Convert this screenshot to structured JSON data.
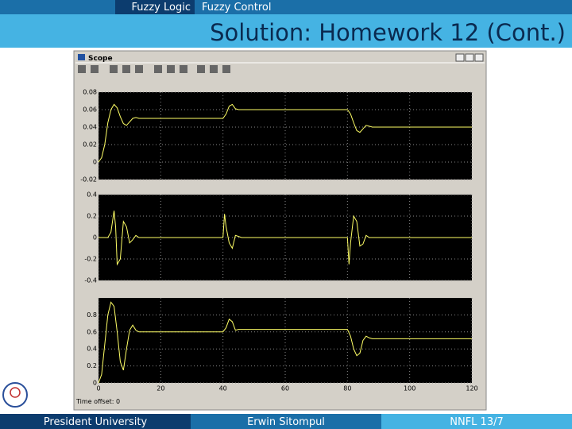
{
  "header": {
    "tabs": [
      "Fuzzy Logic",
      "Fuzzy Control"
    ],
    "title": "Solution: Homework 12 (Cont.)"
  },
  "window": {
    "title": "Scope",
    "time_offset": "Time offset:  0"
  },
  "chart_data": [
    {
      "type": "line",
      "x": [
        0,
        1,
        2,
        3,
        4,
        5,
        6,
        7,
        8,
        9,
        10,
        11,
        12,
        13,
        40,
        41,
        42,
        43,
        44,
        45,
        80,
        81,
        82,
        83,
        84,
        85,
        86,
        87,
        88,
        120
      ],
      "series": [
        {
          "color": "#ffff66",
          "values": [
            0,
            0.005,
            0.02,
            0.045,
            0.06,
            0.066,
            0.062,
            0.052,
            0.044,
            0.042,
            0.046,
            0.05,
            0.051,
            0.05,
            0.05,
            0.055,
            0.064,
            0.066,
            0.061,
            0.06,
            0.06,
            0.055,
            0.045,
            0.036,
            0.034,
            0.038,
            0.042,
            0.041,
            0.04,
            0.04
          ]
        }
      ],
      "xlim": [
        0,
        120
      ],
      "xticks": [
        0,
        20,
        40,
        60,
        80,
        100,
        120
      ],
      "ylim": [
        -0.02,
        0.08
      ],
      "yticks": [
        0.08,
        0.06,
        0.04,
        0.02,
        0,
        -0.02
      ],
      "grid": true
    },
    {
      "type": "line",
      "x": [
        0,
        1,
        3,
        4,
        5,
        5.5,
        6,
        7,
        8,
        9,
        10,
        11,
        12,
        13,
        40,
        40.5,
        41,
        42,
        43,
        44,
        45,
        46,
        47,
        80,
        80.5,
        81,
        82,
        83,
        84,
        85,
        86,
        87,
        88,
        120
      ],
      "series": [
        {
          "color": "#ffff66",
          "values": [
            0,
            0,
            0,
            0.05,
            0.25,
            0.1,
            -0.25,
            -0.2,
            0.15,
            0.1,
            -0.05,
            -0.02,
            0.02,
            0,
            0,
            0.22,
            0.1,
            -0.05,
            -0.1,
            0.02,
            0.01,
            0,
            0,
            0,
            -0.25,
            -0.05,
            0.2,
            0.15,
            -0.08,
            -0.06,
            0.02,
            0,
            0,
            0
          ]
        }
      ],
      "xlim": [
        0,
        120
      ],
      "xticks": [
        0,
        20,
        40,
        60,
        80,
        100,
        120
      ],
      "ylim": [
        -0.4,
        0.4
      ],
      "yticks": [
        0.4,
        0.2,
        0,
        -0.2,
        -0.4
      ],
      "grid": true
    },
    {
      "type": "line",
      "x": [
        0,
        1,
        2,
        3,
        4,
        5,
        6,
        7,
        8,
        9,
        10,
        11,
        12,
        13,
        40,
        41,
        42,
        43,
        44,
        45,
        80,
        81,
        82,
        83,
        84,
        85,
        86,
        87,
        88,
        120
      ],
      "series": [
        {
          "color": "#ffff66",
          "values": [
            0,
            0.1,
            0.45,
            0.8,
            0.95,
            0.9,
            0.6,
            0.25,
            0.15,
            0.4,
            0.62,
            0.68,
            0.62,
            0.6,
            0.6,
            0.65,
            0.75,
            0.72,
            0.62,
            0.63,
            0.63,
            0.55,
            0.4,
            0.32,
            0.35,
            0.5,
            0.55,
            0.53,
            0.52,
            0.52
          ]
        }
      ],
      "xlim": [
        0,
        120
      ],
      "xticks": [
        0,
        20,
        40,
        60,
        80,
        100,
        120
      ],
      "ylim": [
        0,
        1
      ],
      "yticks": [
        0.8,
        0.6,
        0.4,
        0.2,
        0
      ],
      "grid": true
    }
  ],
  "footer": {
    "left": "President University",
    "center": "Erwin Sitompul",
    "right": "NNFL 13/7"
  }
}
